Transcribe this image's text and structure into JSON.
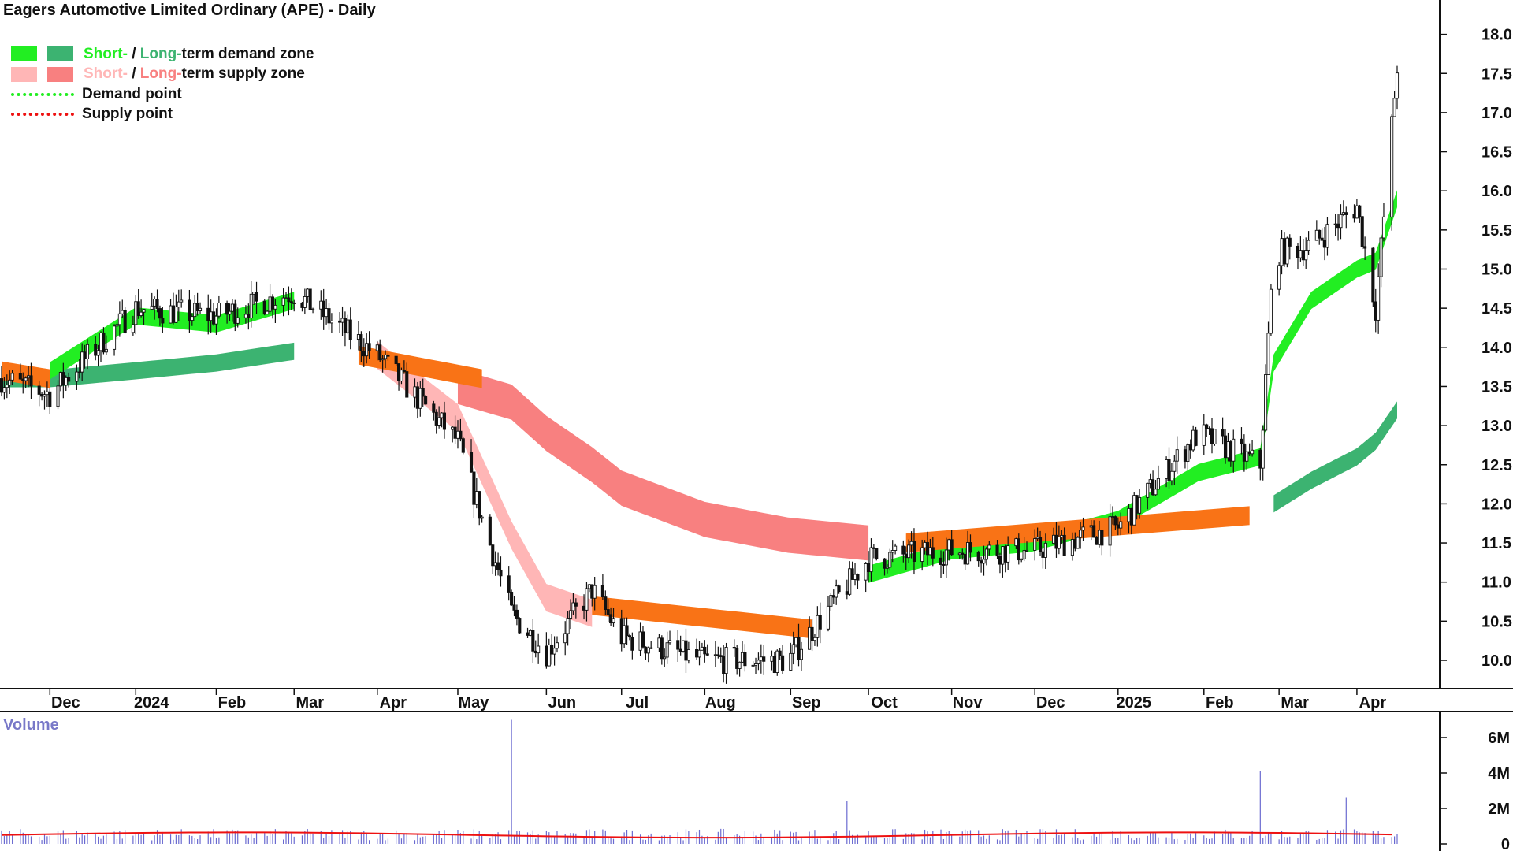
{
  "title": "Eagers Automotive Limited Ordinary (APE) - Daily",
  "legend": {
    "demand_zone": {
      "short": "Short-",
      "sep": " / ",
      "long": "Long-",
      "rest": "term demand zone"
    },
    "supply_zone": {
      "short": "Short-",
      "sep": " / ",
      "long": "Long-",
      "rest": "term supply zone"
    },
    "demand_point": "Demand point",
    "supply_point": "Supply point"
  },
  "colors": {
    "short_demand": "#22ee22",
    "long_demand": "#3cb371",
    "short_supply": "#ffb6b6",
    "long_supply": "#f88080",
    "transition": "#f97316",
    "candle": "#111111",
    "volume_bar": "#6a6ad0",
    "volume_avg": "#ee1111",
    "demand_point": "#22ee22",
    "supply_point": "#ee1111"
  },
  "volume_label": "Volume",
  "chart_data": [
    {
      "type": "candlestick",
      "title": "Eagers Automotive Limited Ordinary (APE) - Daily",
      "x_tick_labels": [
        "Dec",
        "2024",
        "Feb",
        "Mar",
        "Apr",
        "May",
        "Jun",
        "Jul",
        "Aug",
        "Sep",
        "Oct",
        "Nov",
        "Dec",
        "2025",
        "Feb",
        "Mar",
        "Apr"
      ],
      "y_tick_labels": [
        "10.0",
        "10.5",
        "11.0",
        "11.5",
        "12.0",
        "12.5",
        "13.0",
        "13.5",
        "14.0",
        "14.5",
        "15.0",
        "15.5",
        "16.0",
        "16.5",
        "17.0",
        "17.5",
        "18.0"
      ],
      "ylim": [
        9.7,
        18.2
      ],
      "x": [
        "2023-11-13",
        "2023-12-01",
        "2024-01-02",
        "2024-02-01",
        "2024-03-01",
        "2024-04-01",
        "2024-05-01",
        "2024-05-21",
        "2024-06-03",
        "2024-06-20",
        "2024-07-01",
        "2024-08-01",
        "2024-09-01",
        "2024-10-01",
        "2024-11-01",
        "2024-12-01",
        "2025-01-02",
        "2025-02-01",
        "2025-02-24",
        "2025-03-01",
        "2025-03-15",
        "2025-04-01",
        "2025-04-08",
        "2025-04-16"
      ],
      "close": [
        13.6,
        13.4,
        14.5,
        14.4,
        14.7,
        13.9,
        12.8,
        10.6,
        10.1,
        10.9,
        10.3,
        10.0,
        10.0,
        11.3,
        11.4,
        11.4,
        11.7,
        12.9,
        12.5,
        15.2,
        15.3,
        15.8,
        14.5,
        17.6
      ],
      "series": [
        {
          "name": "Short-term demand zone",
          "values": [
            null,
            13.7,
            14.4,
            14.3,
            14.6,
            null,
            null,
            null,
            null,
            null,
            null,
            null,
            null,
            11.1,
            11.4,
            11.5,
            11.8,
            12.4,
            12.6,
            13.8,
            14.6,
            15.0,
            15.1,
            15.9
          ]
        },
        {
          "name": "Long-term demand zone",
          "values": [
            13.6,
            13.6,
            13.7,
            13.8,
            13.95,
            null,
            null,
            null,
            null,
            null,
            null,
            null,
            null,
            null,
            null,
            null,
            null,
            null,
            null,
            12.0,
            12.3,
            12.6,
            12.8,
            13.2
          ]
        },
        {
          "name": "Short-term supply zone",
          "values": [
            null,
            null,
            null,
            null,
            null,
            13.9,
            13.1,
            11.6,
            10.8,
            10.6,
            null,
            null,
            null,
            null,
            null,
            null,
            null,
            null,
            null,
            null,
            null,
            null,
            null,
            null
          ]
        },
        {
          "name": "Long-term supply zone",
          "values": [
            null,
            null,
            null,
            null,
            null,
            null,
            13.5,
            13.3,
            12.9,
            12.5,
            12.2,
            11.8,
            11.6,
            11.5,
            null,
            null,
            null,
            null,
            null,
            null,
            null,
            null,
            null,
            null
          ]
        }
      ]
    },
    {
      "type": "bar",
      "title": "Volume",
      "y_tick_labels": [
        "0",
        "2M",
        "4M",
        "6M"
      ],
      "ylim": [
        0,
        7000000
      ],
      "volume_spikes": [
        {
          "x": "2024-05-21",
          "value": 7000000
        },
        {
          "x": "2025-02-24",
          "value": 4100000
        },
        {
          "x": "2025-03-28",
          "value": 2600000
        },
        {
          "x": "2024-09-23",
          "value": 2400000
        }
      ],
      "typical_volume": 500000
    }
  ]
}
